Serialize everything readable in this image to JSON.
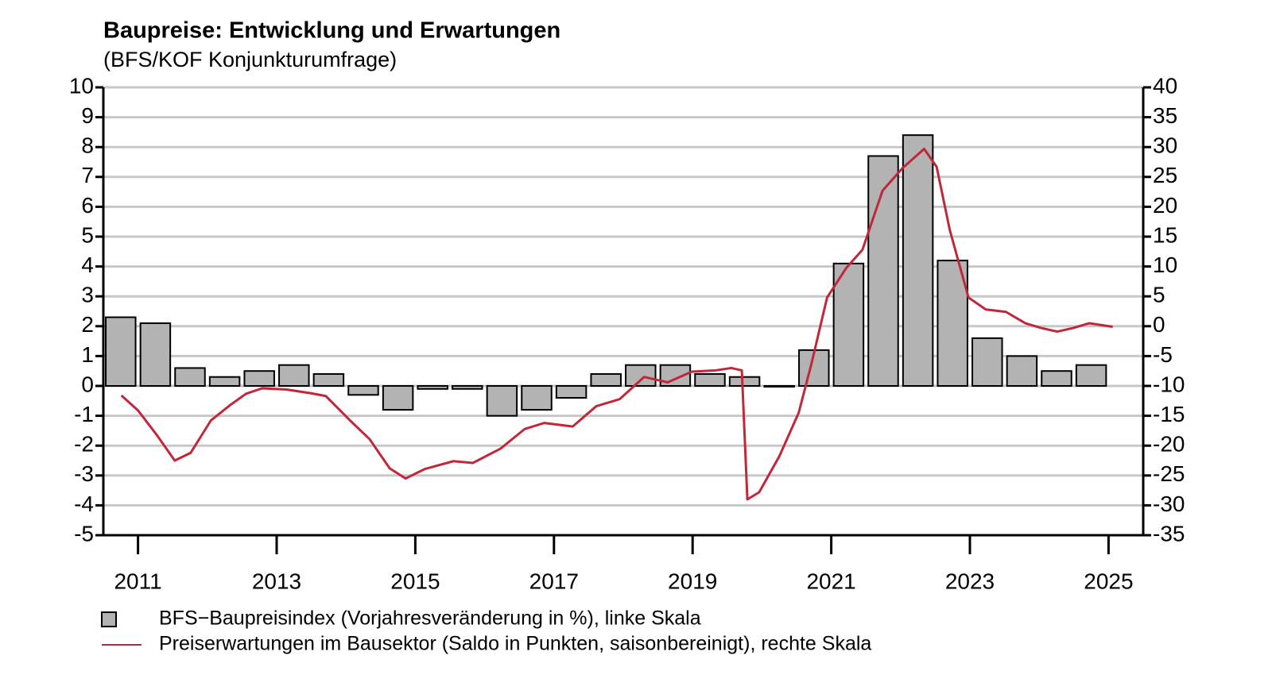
{
  "chart_data": {
    "type": "bar_line",
    "title": "Baupreise: Entwicklung und Erwartungen",
    "subtitle": "(BFS/KOF Konjunkturumfrage)",
    "xlim": [
      2011,
      2026
    ],
    "xticks": [
      {
        "value": 2011.5,
        "label": "2011"
      },
      {
        "value": 2013.5,
        "label": "2013"
      },
      {
        "value": 2015.5,
        "label": "2015"
      },
      {
        "value": 2017.5,
        "label": "2017"
      },
      {
        "value": 2019.5,
        "label": "2019"
      },
      {
        "value": 2021.5,
        "label": "2021"
      },
      {
        "value": 2023.5,
        "label": "2023"
      },
      {
        "value": 2025.5,
        "label": "2025"
      }
    ],
    "ylim": [
      -5,
      10
    ],
    "yticks": [
      -5,
      -4,
      -3,
      -2,
      -1,
      0,
      1,
      2,
      3,
      4,
      5,
      6,
      7,
      8,
      9,
      10
    ],
    "y2lim": [
      -35,
      40
    ],
    "y2ticks": [
      -35,
      -30,
      -25,
      -20,
      -15,
      -10,
      -5,
      0,
      5,
      10,
      15,
      20,
      25,
      30,
      35,
      40
    ],
    "grid": true,
    "series": [
      {
        "name": "BFS−Baupreisindex (Vorjahresveränderung in %), linke Skala",
        "type": "bar",
        "color": "#b3b3b3",
        "x": [
          2011.25,
          2011.75,
          2012.25,
          2012.75,
          2013.25,
          2013.75,
          2014.25,
          2014.75,
          2015.25,
          2015.75,
          2016.25,
          2016.75,
          2017.25,
          2017.75,
          2018.25,
          2018.75,
          2019.25,
          2019.75,
          2020.25,
          2020.75,
          2021.25,
          2021.75,
          2022.25,
          2022.75,
          2023.25,
          2023.75,
          2024.25,
          2024.75,
          2025.25
        ],
        "values": [
          2.3,
          2.1,
          0.6,
          0.3,
          0.5,
          0.7,
          0.4,
          -0.3,
          -0.8,
          -0.1,
          -0.1,
          -1.0,
          -0.8,
          -0.4,
          0.4,
          0.7,
          0.7,
          0.4,
          0.3,
          0.0,
          1.2,
          4.1,
          7.7,
          8.4,
          4.2,
          1.6,
          1.0,
          0.5,
          0.7
        ]
      },
      {
        "name": "Preiserwartungen im Bausektor (Saldo in Punkten, saisonbereinigt), rechte Skala",
        "type": "line",
        "color": "#c0283a",
        "axis": "y2",
        "x": [
          2011.26,
          2011.5,
          2011.77,
          2012.03,
          2012.26,
          2012.55,
          2012.83,
          2013.06,
          2013.29,
          2013.64,
          2013.98,
          2014.21,
          2014.56,
          2014.84,
          2015.13,
          2015.36,
          2015.64,
          2016.05,
          2016.33,
          2016.73,
          2017.08,
          2017.36,
          2017.77,
          2018.11,
          2018.45,
          2018.8,
          2019.14,
          2019.49,
          2019.83,
          2020.06,
          2020.21,
          2020.29,
          2020.46,
          2020.75,
          2021.03,
          2021.21,
          2021.44,
          2021.72,
          2021.95,
          2022.24,
          2022.53,
          2022.84,
          2023.02,
          2023.21,
          2023.48,
          2023.73,
          2024.02,
          2024.3,
          2024.53,
          2024.76,
          2024.99,
          2025.22,
          2025.56
        ],
        "values": [
          -11.6,
          -14.1,
          -18.2,
          -22.5,
          -21.2,
          -15.8,
          -13.2,
          -11.3,
          -10.4,
          -10.6,
          -11.2,
          -11.7,
          -15.8,
          -18.9,
          -23.8,
          -25.5,
          -23.9,
          -22.6,
          -22.9,
          -20.5,
          -17.2,
          -16.2,
          -16.8,
          -13.4,
          -12.2,
          -8.5,
          -9.4,
          -7.6,
          -7.4,
          -7.0,
          -7.4,
          -29.0,
          -27.8,
          -21.8,
          -14.5,
          -6.5,
          4.8,
          9.8,
          12.8,
          22.7,
          26.5,
          29.7,
          26.7,
          16.1,
          4.8,
          2.8,
          2.4,
          0.5,
          -0.3,
          -0.9,
          -0.3,
          0.5,
          -0.1
        ]
      }
    ]
  }
}
